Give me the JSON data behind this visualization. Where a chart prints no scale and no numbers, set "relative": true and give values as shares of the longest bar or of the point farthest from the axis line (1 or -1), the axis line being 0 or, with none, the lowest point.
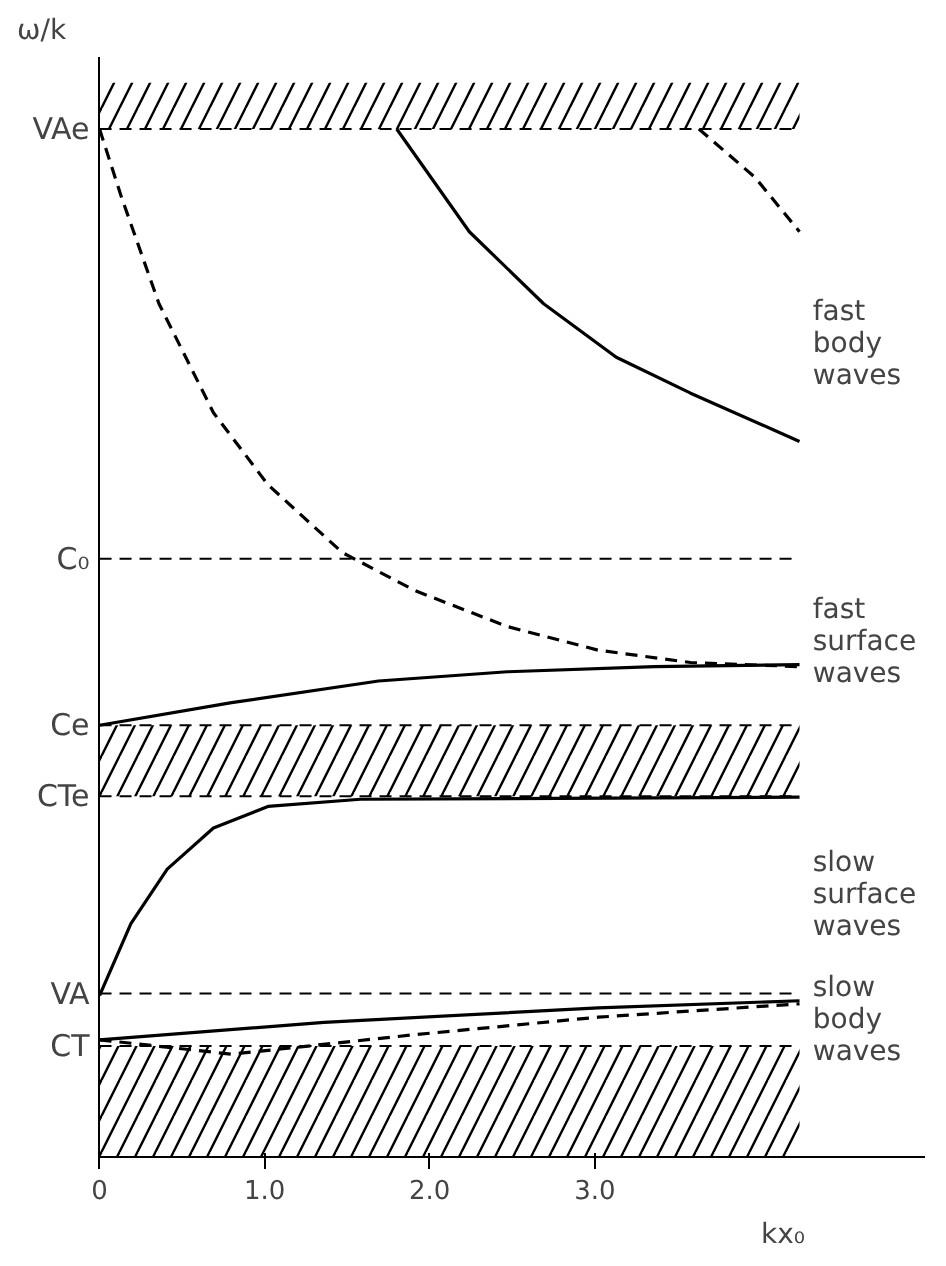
{
  "chart_data": {
    "type": "line",
    "relative": true,
    "ylabel": "ω/k",
    "xlabel": "kx₀",
    "xlim": [
      0,
      5.0
    ],
    "xticks": [
      0,
      {
        "value": 1,
        "label": "1.0"
      },
      {
        "value": 2,
        "label": "2.0"
      },
      {
        "value": 3,
        "label": "3.0"
      }
    ],
    "grid": false,
    "series": [
      {
        "color": "#000000",
        "line_style": "solid",
        "x": [
          1.8,
          2.24,
          2.69,
          3.13,
          3.58,
          4.24
        ],
        "values": [
          1.0,
          0.9,
          0.83,
          0.778,
          0.743,
          0.696
        ]
      },
      {
        "color": "#000000",
        "line_style": "dashed",
        "x": [
          3.63,
          3.97,
          4.24
        ],
        "values": [
          1.0,
          0.953,
          0.9
        ]
      },
      {
        "color": "#000000",
        "line_style": "dashed",
        "x": [
          0,
          0.13,
          0.36,
          0.69,
          1.02,
          1.47,
          1.91,
          2.47,
          3.02,
          3.58,
          4.24
        ],
        "values": [
          1.0,
          0.935,
          0.83,
          0.724,
          0.654,
          0.588,
          0.551,
          0.516,
          0.493,
          0.481,
          0.477
        ]
      },
      {
        "color": "#000000",
        "line_style": "solid",
        "x": [
          0,
          0.8,
          1.69,
          2.47,
          3.36,
          4.24
        ],
        "values": [
          0.42,
          0.442,
          0.463,
          0.472,
          0.477,
          0.479
        ]
      },
      {
        "color": "#000000",
        "line_style": "solid",
        "x": [
          0,
          0.19,
          0.41,
          0.69,
          1.02,
          1.58,
          4.24
        ],
        "values": [
          0.157,
          0.227,
          0.28,
          0.32,
          0.341,
          0.348,
          0.35
        ]
      },
      {
        "color": "#000000",
        "line_style": "solid",
        "x": [
          0,
          1.36,
          3.02,
          4.24
        ],
        "values": [
          0.114,
          0.131,
          0.145,
          0.152
        ]
      },
      {
        "color": "#000000",
        "line_style": "dashed",
        "x": [
          0,
          0.8,
          1.91,
          3.02,
          4.24
        ],
        "values": [
          0.114,
          0.1,
          0.119,
          0.136,
          0.149
        ]
      }
    ],
    "ref_lines": [
      {
        "axis": "y",
        "value": 1.0,
        "label": "VAe",
        "line_style": "dashed"
      },
      {
        "axis": "y",
        "value": 0.582,
        "label": "C₀",
        "line_style": "dashed"
      },
      {
        "axis": "y",
        "value": 0.42,
        "label": "Ce",
        "line_style": "dashed"
      },
      {
        "axis": "y",
        "value": 0.351,
        "label": "CTe",
        "line_style": "dashed"
      },
      {
        "axis": "y",
        "value": 0.159,
        "label": "VA",
        "line_style": "dashed"
      },
      {
        "axis": "y",
        "value": 0.108,
        "label": "CT",
        "line_style": "dashed"
      }
    ],
    "bands": [
      {
        "axis": "y",
        "from": 1.0,
        "to": 1.045,
        "color": "#000000"
      },
      {
        "axis": "y",
        "from": 0.351,
        "to": 0.42,
        "color": "#000000"
      },
      {
        "axis": "y",
        "from": 0.0,
        "to": 0.108,
        "color": "#000000"
      }
    ],
    "annotations": [
      "fast body waves",
      "fast surface waves",
      "slow surface waves",
      "slow body waves"
    ]
  }
}
